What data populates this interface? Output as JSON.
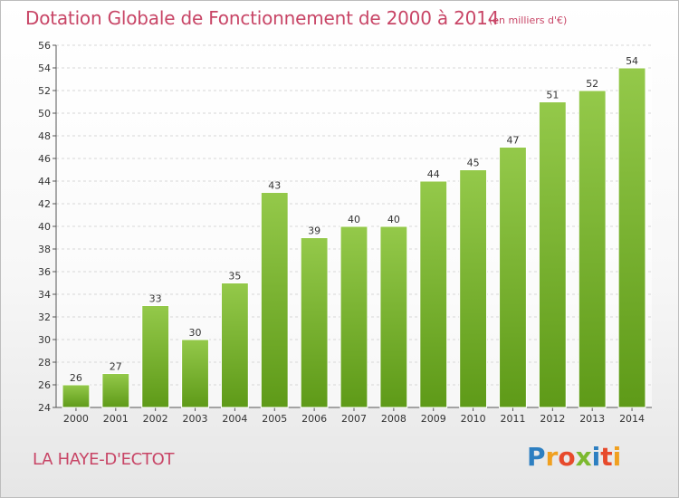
{
  "header": {
    "title": "Dotation Globale de Fonctionnement de 2000 à 2014",
    "subtitle": "(en milliers d'€)"
  },
  "footer": {
    "commune": "LA HAYE-D'ECTOT",
    "brand_letters": [
      "P",
      "r",
      "o",
      "x",
      "i",
      "t",
      "i"
    ]
  },
  "colors": {
    "accent": "#c84566",
    "bar_top": "#94c94a",
    "bar_bottom": "#5e9a18",
    "grid": "#d7d7d7",
    "brand": [
      "#2d7fc1",
      "#f0a020",
      "#e74a2c",
      "#7cb92f",
      "#2d7fc1",
      "#e74a2c",
      "#f0a020"
    ]
  },
  "chart_data": {
    "type": "bar",
    "title": "Dotation Globale de Fonctionnement de 2000 à 2014",
    "subtitle": "(en milliers d'€)",
    "xlabel": "",
    "ylabel": "",
    "categories": [
      "2000",
      "2001",
      "2002",
      "2003",
      "2004",
      "2005",
      "2006",
      "2007",
      "2008",
      "2009",
      "2010",
      "2011",
      "2012",
      "2013",
      "2014"
    ],
    "values": [
      26,
      27,
      33,
      30,
      35,
      43,
      39,
      40,
      40,
      44,
      45,
      47,
      51,
      52,
      54
    ],
    "ylim": [
      24,
      56
    ],
    "yticks": [
      24,
      26,
      28,
      30,
      32,
      34,
      36,
      38,
      40,
      42,
      44,
      46,
      48,
      50,
      52,
      54,
      56
    ],
    "grid": true,
    "legend": "none"
  }
}
